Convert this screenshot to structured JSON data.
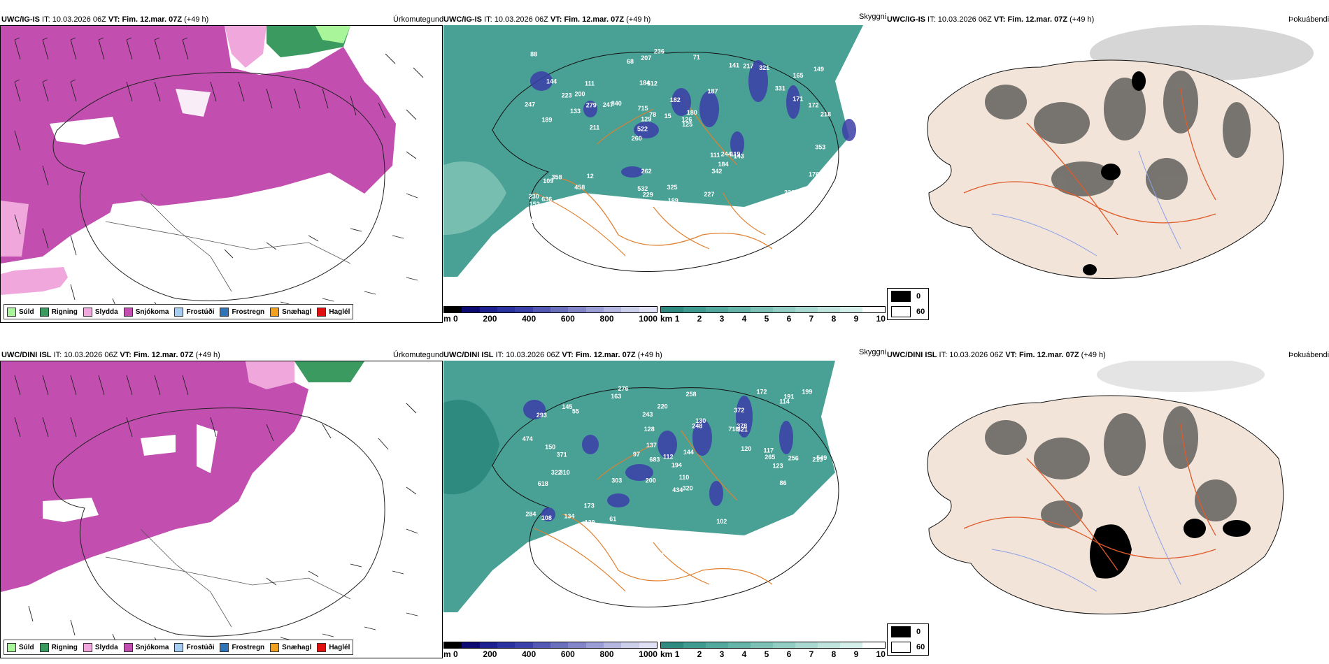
{
  "rows": [
    {
      "model": "UWC/IG-IS",
      "it": "10.03.2026 06Z",
      "vt": "Fim. 12.mar. 07Z",
      "lead": "(+49 h)",
      "precip_title": "Úrkomutegund",
      "cloud_title": "Skyggni",
      "fog_title": "Þokuábendi",
      "cloud_values": [
        "342",
        "189",
        "165",
        "260",
        "187",
        "302",
        "184",
        "182",
        "358",
        "840",
        "152",
        "155",
        "512",
        "180",
        "143",
        "144",
        "207",
        "218",
        "111",
        "171",
        "522",
        "532",
        "129",
        "111",
        "141",
        "12",
        "129",
        "236",
        "119",
        "150",
        "247",
        "133",
        "342",
        "217",
        "172",
        "126",
        "169",
        "229",
        "125",
        "109",
        "331",
        "149",
        "184",
        "227",
        "458",
        "229",
        "182",
        "325",
        "321",
        "236",
        "211",
        "247",
        "200",
        "217",
        "230",
        "71",
        "68",
        "78",
        "176",
        "262",
        "182",
        "244",
        "279",
        "230",
        "88",
        "223",
        "353",
        "715",
        "189",
        "15",
        "636"
      ]
    },
    {
      "model": "UWC/DINI ISL",
      "it": "10.03.2026 06Z",
      "vt": "Fim. 12.mar. 07Z",
      "lead": "(+49 h)",
      "precip_title": "Úrkomutegund",
      "cloud_title": "Skyggni",
      "fog_title": "Þokuábendi",
      "cloud_values": [
        "276",
        "372",
        "213",
        "200",
        "320",
        "310",
        "293",
        "718",
        "618",
        "248",
        "194",
        "393",
        "163",
        "303",
        "132",
        "234",
        "244",
        "172",
        "120",
        "173",
        "371",
        "322",
        "549",
        "256",
        "284",
        "150",
        "683",
        "265",
        "225",
        "108",
        "105",
        "130",
        "134",
        "97",
        "102",
        "149",
        "117",
        "230",
        "199",
        "220",
        "137",
        "388",
        "106",
        "145",
        "163",
        "321",
        "175",
        "378",
        "474",
        "110",
        "243",
        "123",
        "144",
        "114",
        "258",
        "129",
        "137",
        "112",
        "191",
        "128",
        "139",
        "86",
        "55",
        "61",
        "434"
      ]
    }
  ],
  "precip_legend": [
    {
      "label": "Súld",
      "color": "#a8f59a"
    },
    {
      "label": "Rigning",
      "color": "#3a9a60"
    },
    {
      "label": "Slydda",
      "color": "#f0a8dc"
    },
    {
      "label": "Snjókoma",
      "color": "#c24fb0"
    },
    {
      "label": "Frostúði",
      "color": "#a6cdf0"
    },
    {
      "label": "Frostregn",
      "color": "#2f74b8"
    },
    {
      "label": "Snæhagl",
      "color": "#f2a020"
    },
    {
      "label": "Haglél",
      "color": "#e01010"
    }
  ],
  "cloud_colorbar_m": {
    "unit": "m",
    "ticks": [
      "0",
      "200",
      "400",
      "600",
      "800",
      "1000"
    ]
  },
  "cloud_colorbar_km": {
    "unit": "km",
    "ticks": [
      "1",
      "2",
      "3",
      "4",
      "5",
      "6",
      "7",
      "8",
      "9",
      "10"
    ]
  },
  "fog_legend": {
    "black": "0",
    "white": "60"
  },
  "colors": {
    "snow": "#c24fb0",
    "sleet": "#f0a8dc",
    "rain": "#3a9a60",
    "drizzle": "#a8f59a",
    "teal": "#3f9b8f",
    "land": "#f2e4d8",
    "road": "#e05a2a",
    "river": "#8aa0e8"
  }
}
